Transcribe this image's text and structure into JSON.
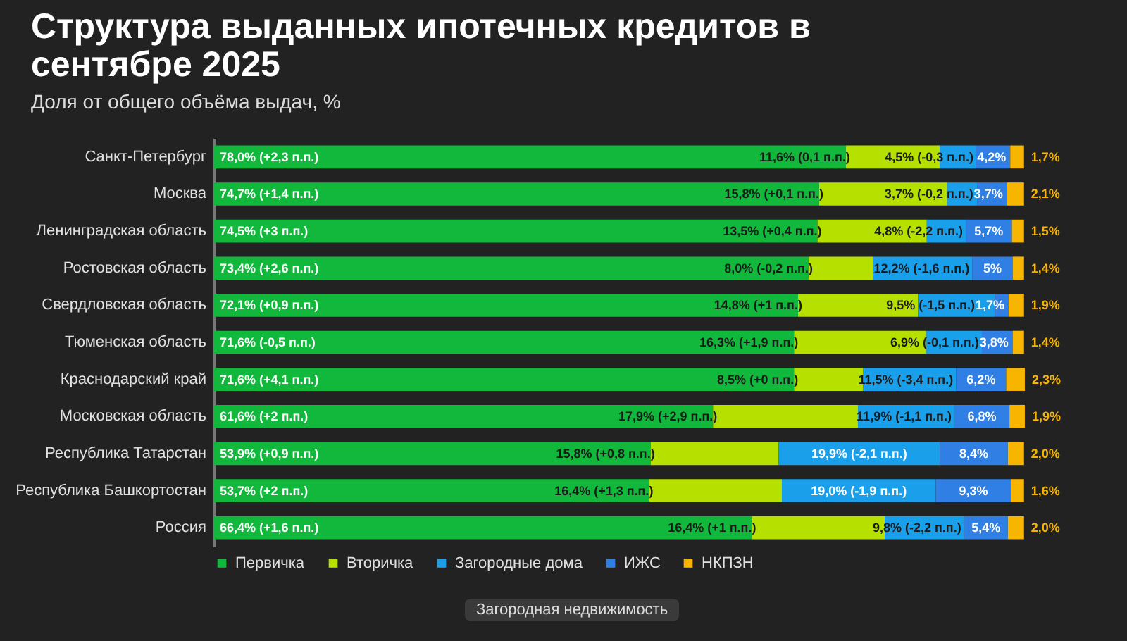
{
  "chart_data": {
    "type": "bar",
    "orientation": "horizontal",
    "stacked": true,
    "title": "Структура выданных ипотечных кредитов в сентябре 2025",
    "subtitle": "Доля от общего объёма выдач, %",
    "legend": "bottom",
    "annotations": [
      "Загородная недвижимость"
    ],
    "categories": [
      "Санкт-Петербург",
      "Москва",
      "Ленинградская область",
      "Ростовская область",
      "Свердловская область",
      "Тюменская область",
      "Краснодарский край",
      "Московская область",
      "Республика Татарстан",
      "Республика Башкортостан",
      "Россия"
    ],
    "series": [
      {
        "name": "Первичка",
        "color": "#12b83c",
        "values": [
          78.0,
          74.7,
          74.5,
          73.4,
          72.1,
          71.6,
          71.6,
          61.6,
          53.9,
          53.7,
          66.4
        ],
        "value_labels": [
          "78,0% (+2,3 п.п.)",
          "74,7% (+1,4 п.п.)",
          "74,5% (+3 п.п.)",
          "73,4% (+2,6 п.п.)",
          "72,1% (+0,9 п.п.)",
          "71,6% (-0,5 п.п.)",
          "71,6% (+4,1 п.п.)",
          "61,6% (+2 п.п.)",
          "53,9% (+0,9 п.п.)",
          "53,7% (+2 п.п.)",
          "66,4% (+1,6 п.п.)"
        ]
      },
      {
        "name": "Вторичка",
        "color": "#b6e000",
        "values": [
          11.6,
          15.8,
          13.5,
          8.0,
          14.8,
          16.3,
          8.5,
          17.9,
          15.8,
          16.4,
          16.4
        ],
        "value_labels": [
          "11,6% (0,1 п.п.)",
          "15,8% (+0,1 п.п.)",
          "13,5% (+0,4 п.п.)",
          "8,0% (-0,2 п.п.)",
          "14,8% (+1 п.п.)",
          "16,3% (+1,9 п.п.)",
          "8,5% (+0 п.п.)",
          "17,9% (+2,9 п.п.)",
          "15,8% (+0,8 п.п.)",
          "16,4% (+1,3 п.п.)",
          "16,4% (+1 п.п.)"
        ]
      },
      {
        "name": "Загородные дома",
        "color": "#1aa0ea",
        "values": [
          4.5,
          3.7,
          4.8,
          12.2,
          9.5,
          6.9,
          11.5,
          11.9,
          19.9,
          19.0,
          9.8
        ],
        "value_labels": [
          "4,5% (-0,3 п.п.)",
          "3,7% (-0,2 п.п.)",
          "4,8% (-2,2 п.п.)",
          "12,2% (-1,6 п.п.)",
          "9,5% (-1,5 п.п.)",
          "6,9% (-0,1 п.п.)",
          "11,5% (-3,4 п.п.)",
          "11,9% (-1,1 п.п.)",
          "19,9% (-2,1 п.п.)",
          "19,0% (-1,9 п.п.)",
          "9,8% (-2,2 п.п.)"
        ]
      },
      {
        "name": "ИЖС",
        "color": "#2f7fe4",
        "values": [
          4.2,
          3.7,
          5.7,
          5,
          1.7,
          3.8,
          6.2,
          6.8,
          8.4,
          9.3,
          5.4
        ],
        "value_labels": [
          "4,2%",
          "3,7%",
          "5,7%",
          "5%",
          "1,7%",
          "3,8%",
          "6,2%",
          "6,8%",
          "8,4%",
          "9,3%",
          "5,4%"
        ]
      },
      {
        "name": "НКПЗН",
        "color": "#f7b500",
        "values": [
          1.7,
          2.1,
          1.5,
          1.4,
          1.9,
          1.4,
          2.3,
          1.9,
          2.0,
          1.6,
          2.0
        ],
        "value_labels": [
          "1,7%",
          "2,1%",
          "1,5%",
          "1,4%",
          "1,9%",
          "1,4%",
          "2,3%",
          "1,9%",
          "2,0%",
          "1,6%",
          "2,0%"
        ]
      }
    ]
  }
}
